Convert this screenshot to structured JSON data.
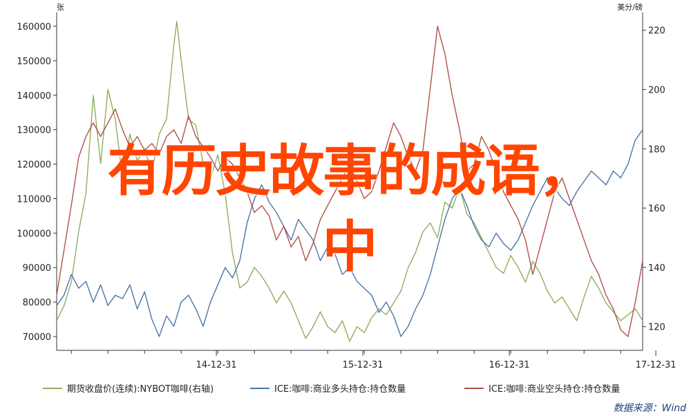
{
  "overlay": {
    "line1": "有历史故事的成语，",
    "line2": "中"
  },
  "source": "数据来源：Wind",
  "chart_data": {
    "type": "line",
    "left_axis": {
      "unit": "张",
      "ticks": [
        70000,
        80000,
        90000,
        100000,
        110000,
        120000,
        130000,
        140000,
        150000,
        160000
      ],
      "ylim": [
        66000,
        164000
      ]
    },
    "right_axis": {
      "unit": "美分/磅",
      "ticks": [
        120,
        140,
        160,
        180,
        200,
        220
      ],
      "ylim": [
        112,
        226
      ]
    },
    "x_ticks": [
      "14-12-31",
      "15-12-31",
      "16-12-31",
      "17-12-31"
    ],
    "x_range": [
      2013.9,
      2017.9
    ],
    "colors": [
      "#8fad5b",
      "#4a73a8",
      "#b0504a"
    ],
    "series": [
      {
        "name": "期货收盘价(连续):NYBOT咖啡(右轴)",
        "axis": "right",
        "points": [
          [
            2013.9,
            122
          ],
          [
            2013.95,
            127
          ],
          [
            2014.0,
            135
          ],
          [
            2014.05,
            152
          ],
          [
            2014.1,
            165
          ],
          [
            2014.15,
            198
          ],
          [
            2014.2,
            175
          ],
          [
            2014.25,
            200
          ],
          [
            2014.3,
            190
          ],
          [
            2014.35,
            170
          ],
          [
            2014.4,
            185
          ],
          [
            2014.45,
            176
          ],
          [
            2014.5,
            180
          ],
          [
            2014.55,
            172
          ],
          [
            2014.6,
            185
          ],
          [
            2014.65,
            190
          ],
          [
            2014.7,
            215
          ],
          [
            2014.72,
            223
          ],
          [
            2014.75,
            210
          ],
          [
            2014.8,
            190
          ],
          [
            2014.85,
            188
          ],
          [
            2014.9,
            175
          ],
          [
            2014.95,
            170
          ],
          [
            2015.0,
            178
          ],
          [
            2015.05,
            165
          ],
          [
            2015.1,
            145
          ],
          [
            2015.15,
            133
          ],
          [
            2015.2,
            135
          ],
          [
            2015.25,
            140
          ],
          [
            2015.3,
            137
          ],
          [
            2015.35,
            133
          ],
          [
            2015.4,
            128
          ],
          [
            2015.45,
            132
          ],
          [
            2015.5,
            128
          ],
          [
            2015.55,
            122
          ],
          [
            2015.6,
            116
          ],
          [
            2015.65,
            120
          ],
          [
            2015.7,
            125
          ],
          [
            2015.75,
            120
          ],
          [
            2015.8,
            118
          ],
          [
            2015.85,
            122
          ],
          [
            2015.9,
            115
          ],
          [
            2015.95,
            120
          ],
          [
            2016.0,
            118
          ],
          [
            2016.05,
            123
          ],
          [
            2016.1,
            126
          ],
          [
            2016.15,
            124
          ],
          [
            2016.2,
            128
          ],
          [
            2016.25,
            132
          ],
          [
            2016.3,
            140
          ],
          [
            2016.35,
            145
          ],
          [
            2016.4,
            152
          ],
          [
            2016.45,
            155
          ],
          [
            2016.5,
            150
          ],
          [
            2016.55,
            162
          ],
          [
            2016.6,
            160
          ],
          [
            2016.65,
            167
          ],
          [
            2016.7,
            158
          ],
          [
            2016.75,
            155
          ],
          [
            2016.8,
            150
          ],
          [
            2016.85,
            145
          ],
          [
            2016.9,
            140
          ],
          [
            2016.95,
            138
          ],
          [
            2017.0,
            144
          ],
          [
            2017.05,
            140
          ],
          [
            2017.1,
            135
          ],
          [
            2017.15,
            142
          ],
          [
            2017.2,
            138
          ],
          [
            2017.25,
            132
          ],
          [
            2017.3,
            128
          ],
          [
            2017.35,
            130
          ],
          [
            2017.4,
            126
          ],
          [
            2017.45,
            122
          ],
          [
            2017.5,
            130
          ],
          [
            2017.55,
            137
          ],
          [
            2017.6,
            133
          ],
          [
            2017.65,
            128
          ],
          [
            2017.7,
            125
          ],
          [
            2017.75,
            122
          ],
          [
            2017.8,
            124
          ],
          [
            2017.85,
            126
          ],
          [
            2017.9,
            122
          ]
        ]
      },
      {
        "name": "ICE:咖啡:商业多头持仓:持仓数量",
        "axis": "left",
        "points": [
          [
            2013.9,
            79000
          ],
          [
            2013.95,
            82000
          ],
          [
            2014.0,
            88000
          ],
          [
            2014.05,
            84000
          ],
          [
            2014.1,
            86000
          ],
          [
            2014.15,
            80000
          ],
          [
            2014.2,
            85000
          ],
          [
            2014.25,
            79000
          ],
          [
            2014.3,
            82000
          ],
          [
            2014.35,
            81000
          ],
          [
            2014.4,
            85000
          ],
          [
            2014.45,
            78000
          ],
          [
            2014.5,
            83000
          ],
          [
            2014.55,
            75000
          ],
          [
            2014.6,
            70000
          ],
          [
            2014.65,
            76000
          ],
          [
            2014.7,
            73000
          ],
          [
            2014.75,
            80000
          ],
          [
            2014.8,
            82000
          ],
          [
            2014.85,
            78000
          ],
          [
            2014.9,
            73000
          ],
          [
            2014.95,
            80000
          ],
          [
            2015.0,
            85000
          ],
          [
            2015.05,
            90000
          ],
          [
            2015.1,
            87000
          ],
          [
            2015.15,
            92000
          ],
          [
            2015.2,
            103000
          ],
          [
            2015.25,
            110000
          ],
          [
            2015.3,
            114000
          ],
          [
            2015.35,
            109000
          ],
          [
            2015.4,
            106000
          ],
          [
            2015.45,
            102000
          ],
          [
            2015.5,
            98000
          ],
          [
            2015.55,
            104000
          ],
          [
            2015.6,
            101000
          ],
          [
            2015.65,
            98000
          ],
          [
            2015.7,
            92000
          ],
          [
            2015.75,
            96000
          ],
          [
            2015.8,
            94000
          ],
          [
            2015.85,
            88000
          ],
          [
            2015.9,
            90000
          ],
          [
            2015.95,
            86000
          ],
          [
            2016.0,
            84000
          ],
          [
            2016.05,
            82000
          ],
          [
            2016.1,
            77000
          ],
          [
            2016.15,
            80000
          ],
          [
            2016.2,
            76000
          ],
          [
            2016.25,
            70000
          ],
          [
            2016.3,
            73000
          ],
          [
            2016.35,
            78000
          ],
          [
            2016.4,
            82000
          ],
          [
            2016.45,
            88000
          ],
          [
            2016.5,
            96000
          ],
          [
            2016.55,
            104000
          ],
          [
            2016.6,
            110000
          ],
          [
            2016.65,
            113000
          ],
          [
            2016.7,
            108000
          ],
          [
            2016.75,
            102000
          ],
          [
            2016.8,
            98000
          ],
          [
            2016.85,
            96000
          ],
          [
            2016.9,
            100000
          ],
          [
            2016.95,
            97000
          ],
          [
            2017.0,
            95000
          ],
          [
            2017.05,
            98000
          ],
          [
            2017.1,
            103000
          ],
          [
            2017.15,
            108000
          ],
          [
            2017.2,
            112000
          ],
          [
            2017.25,
            116000
          ],
          [
            2017.3,
            113000
          ],
          [
            2017.35,
            110000
          ],
          [
            2017.4,
            108000
          ],
          [
            2017.45,
            112000
          ],
          [
            2017.5,
            115000
          ],
          [
            2017.55,
            118000
          ],
          [
            2017.6,
            116000
          ],
          [
            2017.65,
            114000
          ],
          [
            2017.7,
            118000
          ],
          [
            2017.75,
            116000
          ],
          [
            2017.8,
            120000
          ],
          [
            2017.85,
            127000
          ],
          [
            2017.9,
            130000
          ]
        ]
      },
      {
        "name": "ICE:咖啡:商业空头持仓:持仓数量",
        "axis": "left",
        "points": [
          [
            2013.9,
            82000
          ],
          [
            2013.95,
            95000
          ],
          [
            2014.0,
            108000
          ],
          [
            2014.05,
            122000
          ],
          [
            2014.1,
            128000
          ],
          [
            2014.15,
            132000
          ],
          [
            2014.2,
            128000
          ],
          [
            2014.25,
            132000
          ],
          [
            2014.3,
            136000
          ],
          [
            2014.35,
            130000
          ],
          [
            2014.4,
            125000
          ],
          [
            2014.45,
            128000
          ],
          [
            2014.5,
            124000
          ],
          [
            2014.55,
            126000
          ],
          [
            2014.6,
            123000
          ],
          [
            2014.65,
            128000
          ],
          [
            2014.7,
            130000
          ],
          [
            2014.75,
            126000
          ],
          [
            2014.8,
            134000
          ],
          [
            2014.85,
            128000
          ],
          [
            2014.9,
            125000
          ],
          [
            2014.95,
            122000
          ],
          [
            2015.0,
            118000
          ],
          [
            2015.05,
            122000
          ],
          [
            2015.1,
            120000
          ],
          [
            2015.15,
            116000
          ],
          [
            2015.2,
            112000
          ],
          [
            2015.25,
            106000
          ],
          [
            2015.3,
            108000
          ],
          [
            2015.35,
            105000
          ],
          [
            2015.4,
            98000
          ],
          [
            2015.45,
            102000
          ],
          [
            2015.5,
            96000
          ],
          [
            2015.55,
            99000
          ],
          [
            2015.6,
            92000
          ],
          [
            2015.65,
            97000
          ],
          [
            2015.7,
            104000
          ],
          [
            2015.75,
            108000
          ],
          [
            2015.8,
            112000
          ],
          [
            2015.85,
            116000
          ],
          [
            2015.9,
            120000
          ],
          [
            2015.95,
            115000
          ],
          [
            2016.0,
            110000
          ],
          [
            2016.05,
            112000
          ],
          [
            2016.1,
            118000
          ],
          [
            2016.15,
            125000
          ],
          [
            2016.2,
            132000
          ],
          [
            2016.25,
            128000
          ],
          [
            2016.3,
            122000
          ],
          [
            2016.35,
            118000
          ],
          [
            2016.4,
            124000
          ],
          [
            2016.45,
            142000
          ],
          [
            2016.5,
            160000
          ],
          [
            2016.55,
            152000
          ],
          [
            2016.6,
            140000
          ],
          [
            2016.65,
            130000
          ],
          [
            2016.7,
            118000
          ],
          [
            2016.75,
            120000
          ],
          [
            2016.8,
            128000
          ],
          [
            2016.85,
            124000
          ],
          [
            2016.9,
            118000
          ],
          [
            2016.95,
            112000
          ],
          [
            2017.0,
            108000
          ],
          [
            2017.05,
            104000
          ],
          [
            2017.1,
            98000
          ],
          [
            2017.15,
            88000
          ],
          [
            2017.2,
            96000
          ],
          [
            2017.25,
            104000
          ],
          [
            2017.3,
            112000
          ],
          [
            2017.35,
            116000
          ],
          [
            2017.4,
            110000
          ],
          [
            2017.45,
            104000
          ],
          [
            2017.5,
            98000
          ],
          [
            2017.55,
            92000
          ],
          [
            2017.6,
            88000
          ],
          [
            2017.65,
            82000
          ],
          [
            2017.7,
            78000
          ],
          [
            2017.75,
            72000
          ],
          [
            2017.8,
            70000
          ],
          [
            2017.85,
            80000
          ],
          [
            2017.9,
            92000
          ]
        ]
      }
    ]
  }
}
